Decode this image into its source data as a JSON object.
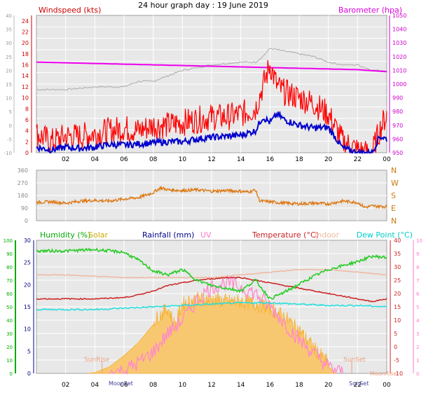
{
  "title": "24 hour graph day : 19 June 2019",
  "colors": {
    "plot_bg": "#e8e8e8",
    "grid": "#ffffff",
    "wind_avg": "#0000cc",
    "wind_gust": "#ff0000",
    "baro": "#ee00ee",
    "gray": "#b4b4b4",
    "direction": "#dd7711",
    "humidity": "#22cc22",
    "solar": "#f5b030",
    "solar_fill": "#f8c870",
    "rain": "#000088",
    "uv": "#ff88cc",
    "temperature": "#cc2222",
    "indoor": "#f0b8a0",
    "dewpoint": "#22dddd",
    "sun": "#e8a080",
    "moon": "#4040a0"
  },
  "chart_data": [
    {
      "type": "line",
      "title": "24 hour graph day : 19 June 2019",
      "x_ticks": [
        "02",
        "04",
        "06",
        "08",
        "10",
        "12",
        "14",
        "16",
        "18",
        "20",
        "22",
        "00"
      ],
      "x_tick_hours": [
        2,
        4,
        6,
        8,
        10,
        12,
        14,
        16,
        18,
        20,
        22,
        24
      ],
      "left_axis": {
        "label": "Windspeed (kts)",
        "ticks": [
          "24",
          "22",
          "20",
          "18",
          "16",
          "14",
          "12",
          "10",
          "8",
          "6",
          "4",
          "2",
          "0"
        ],
        "ylim": [
          0,
          25
        ]
      },
      "outer_left_axis": {
        "ticks": [
          "40",
          "35",
          "30",
          "25",
          "20",
          "15",
          "10",
          "5",
          "0",
          "-5",
          "-10"
        ],
        "ylim": [
          -10,
          40
        ]
      },
      "right_axis": {
        "label": "Barometer (hpa)",
        "ticks": [
          "1050",
          "1040",
          "1030",
          "1020",
          "1010",
          "1000",
          "990",
          "980",
          "970",
          "960",
          "950"
        ],
        "ylim": [
          950,
          1050
        ]
      },
      "series": [
        {
          "name": "Windspeed average",
          "x": [
            0,
            1,
            2,
            3,
            4,
            5,
            6,
            7,
            8,
            9,
            10,
            11,
            12,
            13,
            14,
            15,
            15.5,
            16,
            16.5,
            17,
            18,
            19,
            20,
            21,
            22,
            22.5,
            23,
            23.5,
            24
          ],
          "values": [
            1,
            0.5,
            1,
            0.8,
            1,
            1.5,
            1.4,
            1.6,
            1.8,
            2,
            2,
            2.5,
            2.8,
            3,
            3.2,
            4,
            6.5,
            5.5,
            7,
            6,
            5,
            4.5,
            4.6,
            0.8,
            0,
            0,
            0,
            3,
            2.5
          ]
        },
        {
          "name": "Windspeed gust",
          "x": [
            0,
            1,
            2,
            3,
            4,
            5,
            6,
            7,
            8,
            9,
            10,
            11,
            12,
            13,
            14,
            15,
            15.5,
            16,
            16.5,
            17,
            18,
            19,
            20,
            21,
            22,
            22.5,
            23,
            23.5,
            24
          ],
          "values": [
            3.5,
            2,
            3,
            3,
            3.5,
            4,
            4.5,
            4,
            5,
            5,
            5.5,
            6,
            6.5,
            6.5,
            7,
            8,
            12,
            16,
            12,
            11,
            10,
            9,
            7,
            2,
            0.5,
            0,
            0,
            4,
            7
          ]
        },
        {
          "name": "Barometer",
          "x": [
            0,
            2,
            4,
            6,
            8,
            10,
            12,
            14,
            16,
            18,
            20,
            22,
            24
          ],
          "values": [
            1016,
            1015.5,
            1015,
            1014.5,
            1014,
            1013.5,
            1013,
            1012.5,
            1012,
            1011.5,
            1011,
            1010.5,
            1009
          ]
        },
        {
          "name": "gray trace",
          "x": [
            0,
            2,
            4,
            6,
            7,
            8,
            10,
            12,
            14,
            15,
            15.5,
            16,
            17,
            18,
            19,
            20,
            21,
            22,
            23,
            24
          ],
          "values": [
            13,
            13,
            14,
            14,
            16,
            16,
            20,
            22,
            23,
            23,
            25,
            28,
            27,
            26,
            25,
            23,
            22,
            22,
            20,
            20
          ]
        }
      ],
      "grid": true
    },
    {
      "type": "line",
      "y_labels": [
        "360",
        "270",
        "180",
        "90",
        "0"
      ],
      "compass": [
        "N",
        "W",
        "S",
        "E",
        "N"
      ],
      "ylim": [
        0,
        360
      ],
      "series": [
        {
          "name": "Wind direction",
          "x": [
            0,
            1,
            2,
            3,
            4,
            5,
            6,
            7,
            8,
            8.5,
            9,
            10,
            11,
            12,
            13,
            14,
            14.5,
            15,
            15.3,
            16,
            17,
            18,
            19,
            20,
            21,
            22,
            22.5,
            23,
            24
          ],
          "values": [
            130,
            135,
            125,
            140,
            145,
            140,
            155,
            165,
            200,
            235,
            220,
            215,
            220,
            210,
            215,
            210,
            205,
            220,
            140,
            135,
            125,
            120,
            125,
            120,
            140,
            130,
            95,
            105,
            100
          ]
        }
      ],
      "grid": true
    },
    {
      "type": "line",
      "title_labels": {
        "humidity": "Humidity  (%)",
        "solar": "Solar",
        "rainfall": "Rainfall (mm)",
        "uv": "UV",
        "temperature": "Temperature (°C)",
        "indoor": "Indoor",
        "dewpoint": "Dew Point (°C)"
      },
      "axis_humidity": {
        "ticks": [
          "100",
          "90",
          "80",
          "70",
          "60",
          "50",
          "40",
          "30",
          "20",
          "10",
          "0"
        ],
        "ylim": [
          0,
          100
        ]
      },
      "axis_rain": {
        "ticks": [
          "30",
          "25",
          "20",
          "15",
          "10",
          "5",
          "0"
        ],
        "ylim": [
          0,
          30
        ]
      },
      "axis_temp": {
        "ticks": [
          "40",
          "35",
          "30",
          "25",
          "20",
          "15",
          "10",
          "5",
          "0",
          "-5",
          "-10"
        ],
        "ylim": [
          -10,
          40
        ]
      },
      "axis_uv": {
        "ticks": [
          "10",
          "9",
          "8",
          "7",
          "6",
          "5",
          "4",
          "3",
          "2",
          "1",
          "0"
        ],
        "ylim": [
          0,
          10
        ]
      },
      "events": {
        "sunrise": "SunRise",
        "sunset": "SunSet",
        "moonset": "MoonSet",
        "moonrise": "MoonRise"
      },
      "series": [
        {
          "name": "Humidity",
          "x": [
            0,
            2,
            4,
            6,
            7,
            8,
            9,
            10,
            11,
            12,
            13,
            14,
            15,
            16,
            17,
            18,
            19,
            20,
            21,
            22,
            23,
            24
          ],
          "values": [
            92,
            92,
            93,
            91,
            85,
            77,
            74,
            78,
            70,
            66,
            64,
            62,
            70,
            56,
            61,
            67,
            73,
            78,
            81,
            84,
            88,
            87
          ]
        },
        {
          "name": "Temperature",
          "x": [
            0,
            2,
            4,
            6,
            7,
            8,
            9,
            10,
            11,
            12,
            13,
            14,
            15,
            16,
            17,
            18,
            19,
            20,
            21,
            22,
            23,
            24
          ],
          "values": [
            18,
            18,
            18,
            18.5,
            19.5,
            21,
            23,
            24,
            25,
            25.5,
            26,
            26,
            25,
            24,
            23,
            22,
            21,
            20,
            19,
            18,
            17,
            18
          ]
        },
        {
          "name": "Dew Point",
          "x": [
            0,
            2,
            4,
            6,
            8,
            10,
            12,
            14,
            16,
            18,
            20,
            22,
            24
          ],
          "values": [
            14,
            14,
            14,
            14.5,
            15,
            15.5,
            16,
            16.5,
            16.5,
            16,
            15.5,
            15.5,
            15
          ]
        },
        {
          "name": "Indoor",
          "x": [
            0,
            2,
            4,
            6,
            8,
            10,
            12,
            14,
            16,
            18,
            20,
            22,
            24
          ],
          "values": [
            27,
            27,
            26.5,
            26,
            26,
            26,
            26,
            27,
            28,
            29,
            29,
            28,
            27
          ]
        },
        {
          "name": "Solar",
          "x": [
            3.5,
            4,
            5,
            6,
            7,
            8,
            9,
            9.5,
            10,
            11,
            12,
            13,
            14,
            15,
            16,
            17,
            18,
            19,
            20,
            20.5
          ],
          "values": [
            0,
            0.2,
            1.5,
            4,
            7,
            11,
            14,
            10,
            15,
            16,
            16,
            15.5,
            15.5,
            15,
            14,
            12,
            9,
            5,
            1.5,
            0
          ]
        },
        {
          "name": "UV",
          "x": [
            5,
            6,
            7,
            8,
            9,
            10,
            11,
            12,
            13,
            14,
            15,
            16,
            17,
            18,
            19,
            20,
            21
          ],
          "values": [
            0,
            0.2,
            0.8,
            1.6,
            3,
            4,
            5.5,
            6.5,
            6.8,
            6.5,
            6,
            5,
            3.8,
            2.5,
            1.5,
            0.5,
            0
          ]
        }
      ],
      "grid": true
    }
  ]
}
